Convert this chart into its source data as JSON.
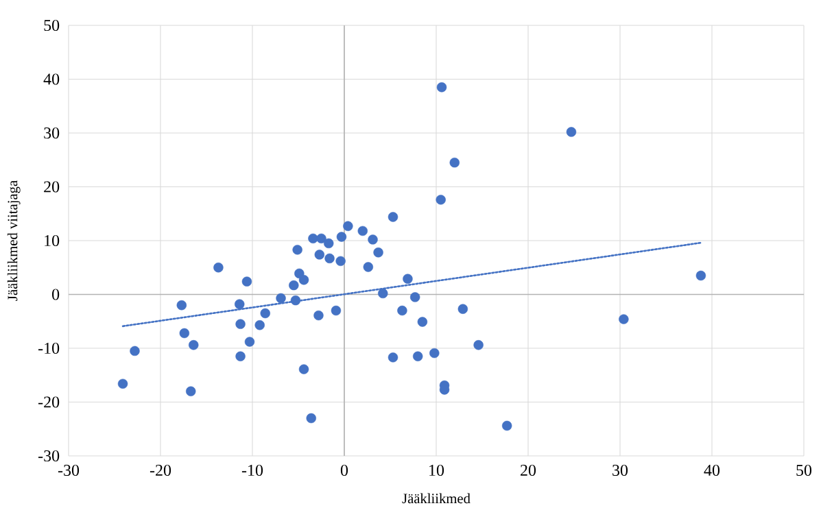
{
  "chart_data": {
    "type": "scatter",
    "xlabel": "Jääkliikmed",
    "ylabel": "Jääkliikmed viitajaga",
    "xlim": [
      -30,
      50
    ],
    "xticks": [
      -30,
      -20,
      -10,
      0,
      10,
      20,
      30,
      40,
      50
    ],
    "ylim": [
      -30,
      50
    ],
    "yticks": [
      -30,
      -20,
      -10,
      0,
      10,
      20,
      30,
      40,
      50
    ],
    "grid": true,
    "legend": false,
    "series": [
      {
        "color": "#4472c4",
        "marker": "circle",
        "x": [
          -24.1,
          -22.8,
          -17.7,
          -17.4,
          -16.4,
          -16.7,
          -13.7,
          -11.4,
          -11.3,
          -11.3,
          -10.6,
          -10.3,
          -9.2,
          -8.6,
          -6.9,
          -5.5,
          -5.3,
          -5.1,
          -4.9,
          -4.4,
          -4.4,
          -3.6,
          -3.4,
          -2.8,
          -2.7,
          -2.5,
          -1.7,
          -1.6,
          -0.9,
          -0.4,
          -0.3,
          0.4,
          2.0,
          3.1,
          2.6,
          3.7,
          4.2,
          5.3,
          5.3,
          6.3,
          6.9,
          7.7,
          8.0,
          8.5,
          9.8,
          10.6,
          10.5,
          10.9,
          10.9,
          12.0,
          12.9,
          14.6,
          17.7,
          24.7,
          30.4,
          38.8
        ],
        "values": [
          -16.6,
          -10.5,
          -2.0,
          -7.2,
          -9.4,
          -18.0,
          5.0,
          -1.8,
          -5.5,
          -11.5,
          2.4,
          -8.8,
          -5.7,
          -3.5,
          -0.7,
          1.7,
          -1.1,
          8.3,
          3.9,
          2.7,
          -13.9,
          -23.0,
          10.4,
          -3.9,
          7.4,
          10.4,
          9.5,
          6.7,
          -3.0,
          6.2,
          10.7,
          12.7,
          11.8,
          10.2,
          5.1,
          7.8,
          0.2,
          14.4,
          -11.7,
          -3.0,
          2.9,
          -0.5,
          -11.5,
          -5.1,
          -10.9,
          38.5,
          17.6,
          -16.9,
          -17.7,
          24.5,
          -2.7,
          -9.4,
          -24.4,
          30.2,
          -4.6,
          3.5
        ]
      },
      {
        "type": "line",
        "color": "#4472c4",
        "marker": "none",
        "line_style": "dotted",
        "x": [
          -24.1,
          38.8
        ],
        "values": [
          -5.9,
          9.6
        ]
      }
    ]
  }
}
